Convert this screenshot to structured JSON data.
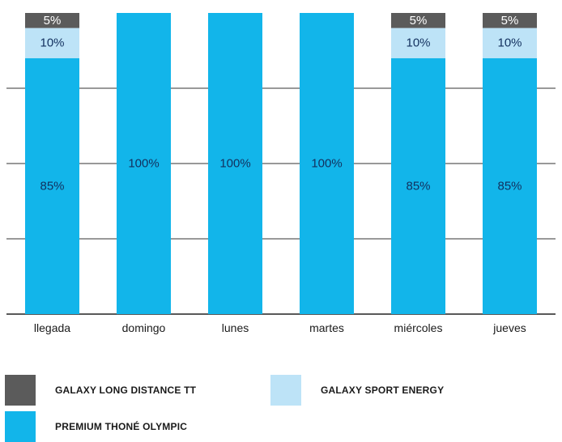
{
  "chart_data": {
    "type": "bar",
    "stacked": true,
    "categories": [
      "llegada",
      "domingo",
      "lunes",
      "martes",
      "miércoles",
      "jueves"
    ],
    "series": [
      {
        "name": "PREMIUM THONÉ OLYMPIC",
        "values": [
          85,
          100,
          100,
          100,
          85,
          85
        ],
        "color": "#12b5ea",
        "labels": [
          "85%",
          "100%",
          "100%",
          "100%",
          "85%",
          "85%"
        ],
        "label_color": "#12305e"
      },
      {
        "name": "GALAXY SPORT ENERGY",
        "values": [
          10,
          0,
          0,
          0,
          10,
          10
        ],
        "color": "#bde3f7",
        "labels": [
          "10%",
          "",
          "",
          "",
          "10%",
          "10%"
        ],
        "label_color": "#12305e"
      },
      {
        "name": "GALAXY LONG DISTANCE TT",
        "values": [
          5,
          0,
          0,
          0,
          5,
          5
        ],
        "color": "#5b5b5b",
        "labels": [
          "5%",
          "",
          "",
          "",
          "5%",
          "5%"
        ],
        "label_color": "#ffffff"
      }
    ],
    "ylim": [
      0,
      100
    ],
    "grid": true,
    "legend_position": "bottom",
    "title": "",
    "xlabel": "",
    "ylabel": ""
  },
  "legend": {
    "items": [
      {
        "label": "GALAXY LONG DISTANCE TT",
        "color": "#5b5b5b"
      },
      {
        "label": "GALAXY SPORT ENERGY",
        "color": "#bde3f7"
      },
      {
        "label": "PREMIUM THONÉ OLYMPIC",
        "color": "#12b5ea"
      }
    ]
  }
}
